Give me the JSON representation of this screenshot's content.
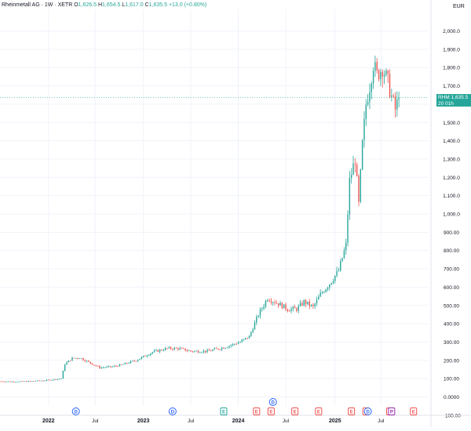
{
  "legend": {
    "symbol": "Rheinmetall AG · 1W · XETR",
    "open_label": "O",
    "open": "1,626.5",
    "high_label": "H",
    "high": "1,654.5",
    "low_label": "L",
    "low": "1,617.0",
    "close_label": "C",
    "close": "1,635.5",
    "change": "+13.0 (+0.80%)"
  },
  "currency": "EUR",
  "last_price": {
    "ticker": "RHM",
    "value": "1,635.5",
    "value_num": 1635.5,
    "countdown": "20 01h"
  },
  "colors": {
    "up": "#26a69a",
    "down": "#ef5350",
    "grid": "#f0f3fa",
    "axis_text": "#131722",
    "event_dividend": "#2962ff",
    "event_earnings": "#ef5350",
    "event_earnings_past": "#26a69a",
    "event_split": "#9c27b0"
  },
  "chart_data": {
    "type": "candlestick",
    "title": "",
    "xlabel": "",
    "ylabel": "",
    "ylim": [
      -100,
      2100
    ],
    "grid": true,
    "y_ticks": [
      -100,
      0,
      100,
      200,
      300,
      400,
      500,
      600,
      700,
      800,
      900,
      1000,
      1100,
      1200,
      1300,
      1400,
      1500,
      1600,
      1700,
      1800,
      1900,
      2000
    ],
    "y_tick_labels": [
      "−100.00",
      "0.0000",
      "100.00",
      "200.00",
      "300.00",
      "400.00",
      "500.00",
      "600.00",
      "700.00",
      "800.00",
      "900.00",
      "1,000.0",
      "1,100.0",
      "1,200.0",
      "1,300.0",
      "1,400.0",
      "1,500.0",
      "1,600.0",
      "1,700.0",
      "1,800.0",
      "1,900.0",
      "2,000.0"
    ],
    "x_ticks": [
      {
        "label": "2022",
        "date": "2022-01-03"
      },
      {
        "label": "Jul",
        "date": "2022-07-01"
      },
      {
        "label": "2023",
        "date": "2023-01-02"
      },
      {
        "label": "Jul",
        "date": "2023-07-03"
      },
      {
        "label": "2024",
        "date": "2024-01-01"
      },
      {
        "label": "Jul",
        "date": "2024-07-01"
      },
      {
        "label": "2025",
        "date": "2025-01-06"
      },
      {
        "label": "Jul",
        "date": "2025-07-01"
      }
    ],
    "x_range": [
      "2021-07-01",
      "2025-12-31"
    ],
    "series": [
      {
        "date": "2021-07-05",
        "close": 85
      },
      {
        "date": "2021-09-01",
        "close": 83
      },
      {
        "date": "2021-11-01",
        "close": 86
      },
      {
        "date": "2021-12-20",
        "close": 90
      },
      {
        "date": "2022-02-21",
        "close": 100
      },
      {
        "date": "2022-03-07",
        "close": 180
      },
      {
        "date": "2022-04-04",
        "close": 210
      },
      {
        "date": "2022-05-02",
        "close": 215
      },
      {
        "date": "2022-06-06",
        "close": 190
      },
      {
        "date": "2022-07-18",
        "close": 160
      },
      {
        "date": "2022-09-05",
        "close": 165
      },
      {
        "date": "2022-10-10",
        "close": 175
      },
      {
        "date": "2022-12-05",
        "close": 200
      },
      {
        "date": "2023-02-06",
        "close": 245
      },
      {
        "date": "2023-04-03",
        "close": 265
      },
      {
        "date": "2023-05-15",
        "close": 265
      },
      {
        "date": "2023-07-03",
        "close": 250
      },
      {
        "date": "2023-09-04",
        "close": 250
      },
      {
        "date": "2023-11-06",
        "close": 270
      },
      {
        "date": "2024-01-08",
        "close": 300
      },
      {
        "date": "2024-02-12",
        "close": 330
      },
      {
        "date": "2024-03-18",
        "close": 450
      },
      {
        "date": "2024-04-22",
        "close": 540
      },
      {
        "date": "2024-06-03",
        "close": 510
      },
      {
        "date": "2024-07-08",
        "close": 480
      },
      {
        "date": "2024-08-12",
        "close": 480
      },
      {
        "date": "2024-09-09",
        "close": 520
      },
      {
        "date": "2024-10-14",
        "close": 490
      },
      {
        "date": "2024-11-11",
        "close": 560
      },
      {
        "date": "2024-12-16",
        "close": 620
      },
      {
        "date": "2025-01-20",
        "close": 690
      },
      {
        "date": "2025-02-17",
        "close": 830
      },
      {
        "date": "2025-03-03",
        "close": 1180
      },
      {
        "date": "2025-03-24",
        "close": 1300
      },
      {
        "date": "2025-04-07",
        "close": 1050
      },
      {
        "date": "2025-04-21",
        "close": 1380
      },
      {
        "date": "2025-05-05",
        "close": 1600
      },
      {
        "date": "2025-05-19",
        "close": 1700
      },
      {
        "date": "2025-06-02",
        "close": 1820
      },
      {
        "date": "2025-06-16",
        "close": 1760
      },
      {
        "date": "2025-07-07",
        "close": 1800
      },
      {
        "date": "2025-07-28",
        "close": 1720
      },
      {
        "date": "2025-08-11",
        "close": 1640
      },
      {
        "date": "2025-08-25",
        "close": 1570
      },
      {
        "date": "2025-09-08",
        "close": 1635
      }
    ],
    "events": [
      {
        "type": "dividend",
        "glyph": "D",
        "date": "2022-04-18"
      },
      {
        "type": "dividend",
        "glyph": "D",
        "date": "2023-04-24"
      },
      {
        "type": "earnings",
        "glyph": "E",
        "date": "2023-11-06"
      },
      {
        "type": "earnings",
        "glyph": "E",
        "date": "2024-03-11"
      },
      {
        "type": "earnings",
        "glyph": "E",
        "date": "2024-05-06"
      },
      {
        "type": "dividend",
        "glyph": "D",
        "date": "2024-05-13"
      },
      {
        "type": "earnings",
        "glyph": "E",
        "date": "2024-08-05"
      },
      {
        "type": "earnings",
        "glyph": "E",
        "date": "2024-11-04"
      },
      {
        "type": "earnings",
        "glyph": "E",
        "date": "2025-03-10"
      },
      {
        "type": "earnings",
        "glyph": "E",
        "date": "2025-05-05"
      },
      {
        "type": "dividend",
        "glyph": "D",
        "date": "2025-05-12"
      },
      {
        "type": "earnings",
        "glyph": "E",
        "date": "2025-08-04"
      },
      {
        "type": "split",
        "glyph": "P",
        "date": "2025-08-11"
      },
      {
        "type": "earnings",
        "glyph": "E",
        "date": "2025-11-03"
      }
    ]
  }
}
